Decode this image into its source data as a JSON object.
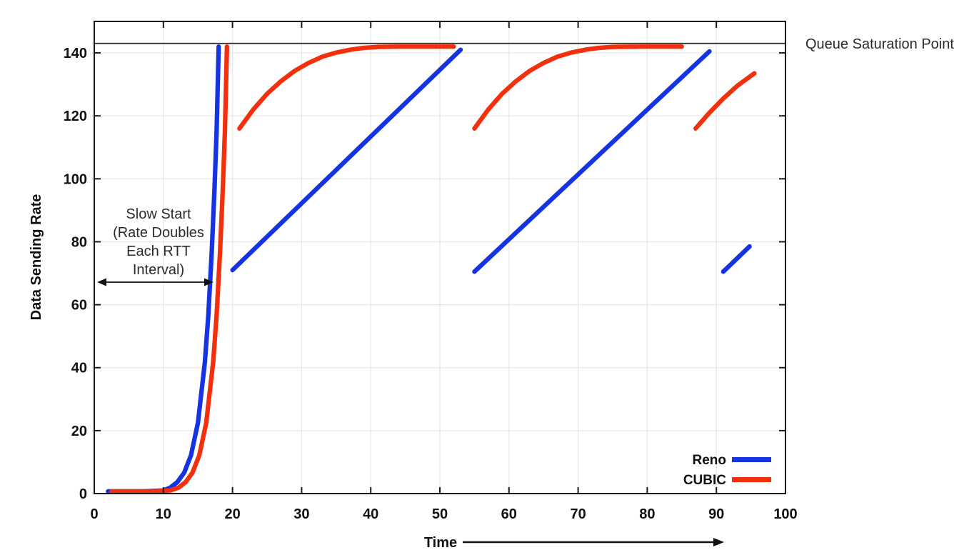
{
  "chart_data": {
    "type": "line",
    "title": "",
    "xlabel": "Time",
    "ylabel": "Data Sending Rate",
    "xlim": [
      0,
      100
    ],
    "ylim": [
      0,
      150
    ],
    "x_ticks": [
      0,
      10,
      20,
      30,
      40,
      50,
      60,
      70,
      80,
      90,
      100
    ],
    "y_ticks": [
      0,
      20,
      40,
      60,
      80,
      100,
      120,
      140
    ],
    "grid": true,
    "legend_position": "bottom-right-inside",
    "queue_saturation": {
      "label": "Queue Saturation Point",
      "value": 143
    },
    "slow_start_annotation": {
      "lines": [
        "Slow Start",
        "(Rate Doubles",
        "Each RTT",
        "Interval)"
      ],
      "arrow_x_range": [
        0.5,
        17
      ]
    },
    "series": [
      {
        "name": "Reno",
        "color": "#1533e0",
        "segments": [
          [
            [
              2,
              0.7
            ],
            [
              7,
              0.7
            ],
            [
              10,
              1.0
            ],
            [
              11,
              1.9
            ],
            [
              12,
              3.6
            ],
            [
              13,
              6.6
            ],
            [
              14,
              12.2
            ],
            [
              15,
              22.5
            ],
            [
              16,
              41.7
            ],
            [
              16.5,
              56.6
            ],
            [
              17,
              77
            ],
            [
              17.4,
              97
            ],
            [
              17.7,
              115
            ],
            [
              18,
              142
            ]
          ],
          [
            [
              20,
              71
            ],
            [
              53,
              141
            ]
          ],
          [
            [
              55,
              70.5
            ],
            [
              89,
              140.5
            ]
          ],
          [
            [
              91,
              70.5
            ],
            [
              94.8,
              78.5
            ]
          ]
        ]
      },
      {
        "name": "CUBIC",
        "color": "#f2300e",
        "segments": [
          [
            [
              2.5,
              0.7
            ],
            [
              8,
              0.7
            ],
            [
              11,
              1.0
            ],
            [
              12.2,
              1.9
            ],
            [
              13.2,
              3.6
            ],
            [
              14.2,
              6.6
            ],
            [
              15.2,
              12.2
            ],
            [
              16.2,
              22.5
            ],
            [
              17.2,
              41.7
            ],
            [
              17.7,
              56.6
            ],
            [
              18.2,
              77
            ],
            [
              18.6,
              97
            ],
            [
              18.9,
              115
            ],
            [
              19.2,
              142
            ]
          ],
          [
            [
              21,
              116
            ],
            [
              23,
              122
            ],
            [
              25,
              127
            ],
            [
              27,
              131
            ],
            [
              29,
              134.3
            ],
            [
              31,
              136.8
            ],
            [
              33,
              138.8
            ],
            [
              35,
              140.1
            ],
            [
              37,
              141
            ],
            [
              39,
              141.6
            ],
            [
              41,
              141.9
            ],
            [
              44,
              142
            ],
            [
              48,
              142
            ],
            [
              52,
              142
            ]
          ],
          [
            [
              55,
              116
            ],
            [
              57,
              122
            ],
            [
              59,
              127
            ],
            [
              61,
              131
            ],
            [
              63,
              134.3
            ],
            [
              65,
              136.8
            ],
            [
              67,
              138.8
            ],
            [
              69,
              140.1
            ],
            [
              71,
              141
            ],
            [
              73,
              141.6
            ],
            [
              75,
              141.9
            ],
            [
              79,
              142
            ],
            [
              85,
              142
            ]
          ],
          [
            [
              87,
              116
            ],
            [
              89,
              121
            ],
            [
              91,
              125.5
            ],
            [
              93,
              129.5
            ],
            [
              95.5,
              133.5
            ]
          ]
        ]
      }
    ]
  }
}
